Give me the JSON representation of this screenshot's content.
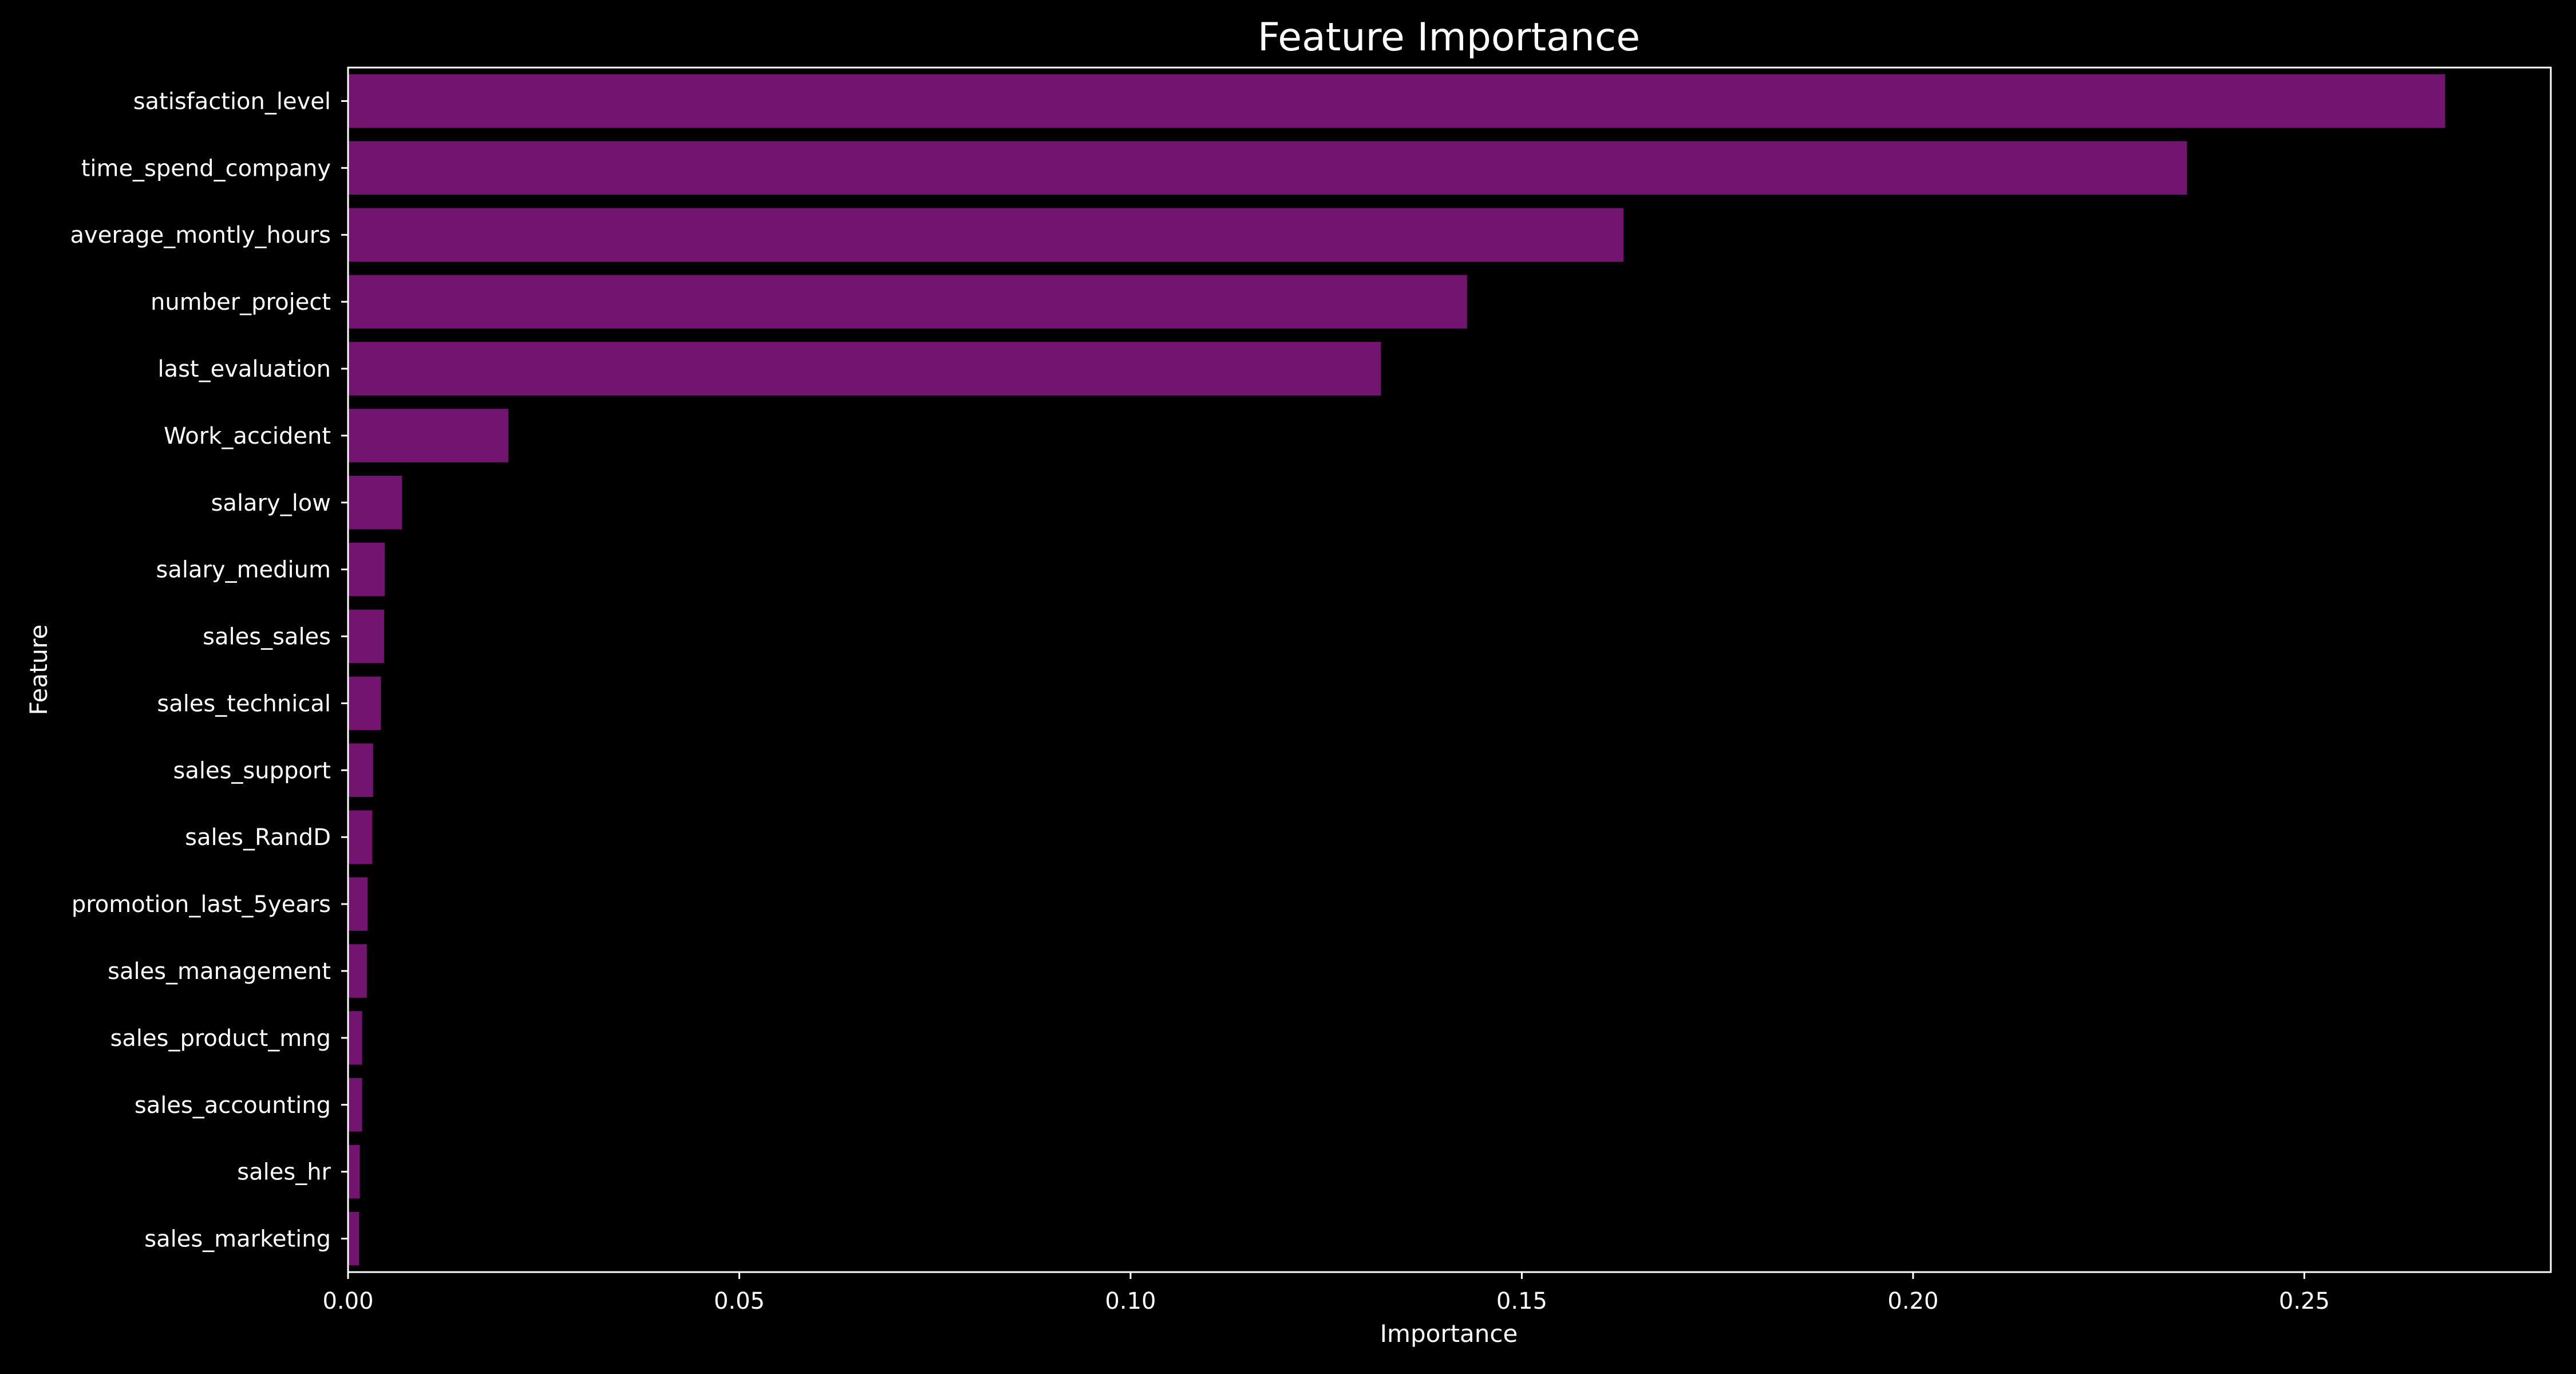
{
  "chart_data": {
    "type": "bar",
    "orientation": "horizontal",
    "title": "Feature Importance",
    "xlabel": "Importance",
    "ylabel": "Feature",
    "xlim": [
      0,
      0.2815
    ],
    "xticks": [
      0.0,
      0.05,
      0.1,
      0.15,
      0.2,
      0.25
    ],
    "xtick_labels": [
      "0.00",
      "0.05",
      "0.10",
      "0.15",
      "0.20",
      "0.25"
    ],
    "grid": false,
    "legend": "none",
    "bar_color": "#731471",
    "background_color": "#000000",
    "text_color": "#ffffff",
    "categories": [
      "satisfaction_level",
      "time_spend_company",
      "average_montly_hours",
      "number_project",
      "last_evaluation",
      "Work_accident",
      "salary_low",
      "salary_medium",
      "sales_sales",
      "sales_technical",
      "sales_support",
      "sales_RandD",
      "promotion_last_5years",
      "sales_management",
      "sales_product_mng",
      "sales_accounting",
      "sales_hr",
      "sales_marketing"
    ],
    "values": [
      0.268,
      0.235,
      0.163,
      0.143,
      0.132,
      0.0205,
      0.0069,
      0.0047,
      0.0046,
      0.0042,
      0.0032,
      0.0031,
      0.0025,
      0.0024,
      0.0018,
      0.0018,
      0.0015,
      0.0014
    ]
  }
}
